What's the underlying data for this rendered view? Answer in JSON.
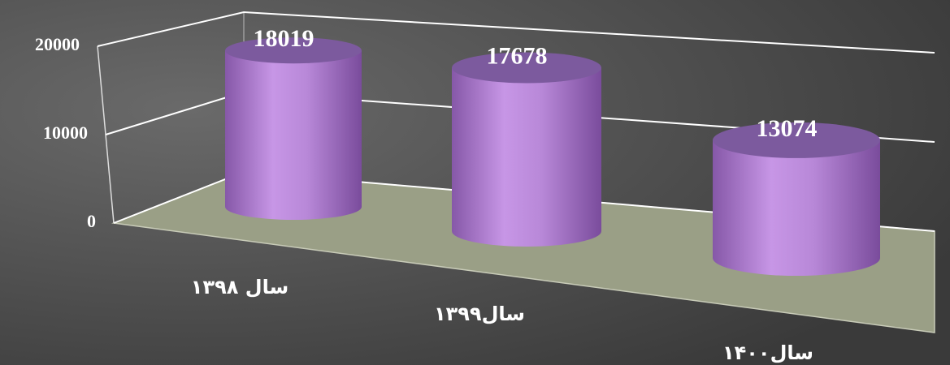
{
  "chart_data": {
    "type": "bar3d",
    "categories": [
      "سال ۱۳۹۸",
      "سال۱۳۹۹",
      "سال۱۴۰۰"
    ],
    "values": [
      18019,
      17678,
      13074
    ],
    "color": "#b98ad8",
    "ylim": [
      0,
      20000
    ],
    "yticks": [
      0,
      10000,
      20000
    ],
    "grid": true
  }
}
